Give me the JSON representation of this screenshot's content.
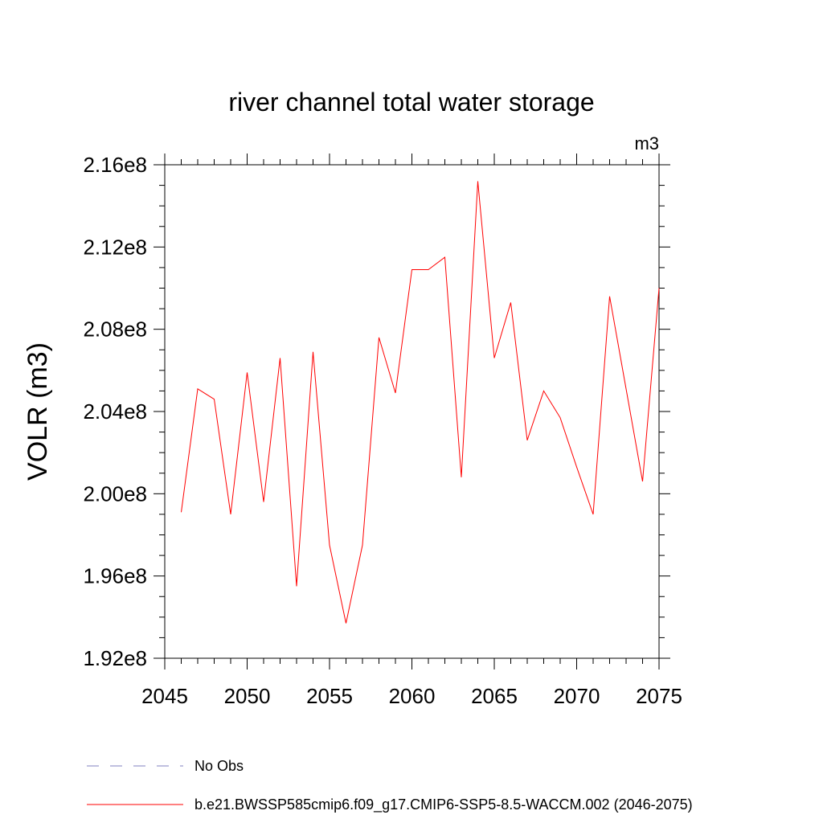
{
  "chart_data": {
    "type": "line",
    "title": "river channel total water storage",
    "units_label": "m3",
    "ylabel": "VOLR  (m3)",
    "xlabel": "",
    "xlim": [
      2045,
      2075
    ],
    "ylim": [
      192000000.0,
      216000000.0
    ],
    "x_ticks": [
      2045,
      2050,
      2055,
      2060,
      2065,
      2070,
      2075
    ],
    "x_tick_labels": [
      "2045",
      "2050",
      "2055",
      "2060",
      "2065",
      "2070",
      "2075"
    ],
    "y_ticks": [
      192000000.0,
      196000000.0,
      200000000.0,
      204000000.0,
      208000000.0,
      212000000.0,
      216000000.0
    ],
    "y_tick_labels": [
      "1.92e8",
      "1.96e8",
      "2.00e8",
      "2.04e8",
      "2.08e8",
      "2.12e8",
      "2.16e8"
    ],
    "grid": false,
    "legend_position": "bottom",
    "series": [
      {
        "name": "b.e21.BWSSP585cmip6.f09_g17.CMIP6-SSP5-8.5-WACCM.002 (2046-2075)",
        "color": "#ff0000",
        "style": "solid",
        "x": [
          2046,
          2047,
          2048,
          2049,
          2050,
          2051,
          2052,
          2053,
          2054,
          2055,
          2056,
          2057,
          2058,
          2059,
          2060,
          2061,
          2062,
          2063,
          2064,
          2065,
          2066,
          2067,
          2068,
          2069,
          2070,
          2071,
          2072,
          2073,
          2074,
          2075
        ],
        "values": [
          199100000.0,
          205100000.0,
          204600000.0,
          199000000.0,
          205900000.0,
          199600000.0,
          206600000.0,
          195500000.0,
          206900000.0,
          197500000.0,
          193700000.0,
          197500000.0,
          207600000.0,
          204900000.0,
          210900000.0,
          210900000.0,
          211500000.0,
          200800000.0,
          215200000.0,
          206600000.0,
          209300000.0,
          202600000.0,
          205000000.0,
          203700000.0,
          201300000.0,
          199000000.0,
          209600000.0,
          205100000.0,
          200600000.0,
          210000000.0
        ]
      }
    ],
    "legend": [
      {
        "label": "No Obs",
        "color": "#8080c0",
        "style": "dashed"
      },
      {
        "label": "b.e21.BWSSP585cmip6.f09_g17.CMIP6-SSP5-8.5-WACCM.002 (2046-2075)",
        "color": "#ff0000",
        "style": "solid"
      }
    ]
  }
}
